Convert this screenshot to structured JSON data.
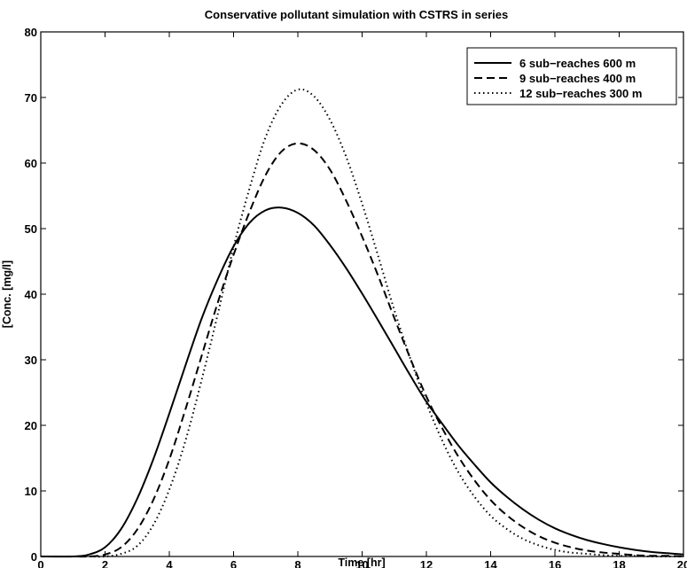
{
  "chart_data": {
    "type": "line",
    "title": "Conservative pollutant simulation with CSTRS in series",
    "xlabel": "Time [hr]",
    "ylabel": "[Conc. [mg/l]",
    "xlim": [
      0,
      20
    ],
    "ylim": [
      0,
      80
    ],
    "x_ticks": [
      "0",
      "2",
      "4",
      "6",
      "8",
      "10",
      "12",
      "14",
      "16",
      "18",
      "20"
    ],
    "y_ticks": [
      "0",
      "10",
      "20",
      "30",
      "40",
      "50",
      "60",
      "70",
      "80"
    ],
    "grid": false,
    "legend_position": "top-right",
    "x": [
      0,
      1,
      1.5,
      2,
      2.5,
      3,
      3.5,
      4,
      4.5,
      5,
      5.5,
      6,
      6.5,
      7,
      7.5,
      8,
      8.5,
      9,
      9.5,
      10,
      10.5,
      11,
      11.5,
      12,
      12.5,
      13,
      13.5,
      14,
      14.5,
      15,
      15.5,
      16,
      16.5,
      17,
      17.5,
      18,
      18.5,
      19,
      19.5,
      20
    ],
    "series": [
      {
        "name": "6 sub−reaches 600 m",
        "style": "solid",
        "values": [
          0,
          0,
          0.3,
          1.4,
          4.2,
          8.8,
          14.8,
          21.8,
          29.1,
          36.2,
          42.2,
          47.3,
          50.9,
          52.8,
          53.2,
          52.4,
          50.5,
          47.5,
          44,
          40.1,
          36,
          31.8,
          27.6,
          23.6,
          20.2,
          16.9,
          14,
          11.3,
          9.1,
          7.2,
          5.6,
          4.3,
          3.3,
          2.5,
          1.9,
          1.4,
          1,
          0.7,
          0.5,
          0.3
        ]
      },
      {
        "name": "9 sub−reaches 400 m",
        "style": "dashed",
        "values": [
          0,
          0,
          0,
          0.3,
          1.4,
          4.1,
          8.6,
          14.8,
          22.4,
          30.5,
          38.6,
          46,
          52.6,
          58.2,
          61.8,
          63,
          62,
          59,
          54.3,
          48.8,
          42.8,
          36.4,
          30.2,
          24.4,
          19.5,
          15.2,
          11.6,
          8.6,
          6.3,
          4.5,
          3.1,
          2.1,
          1.4,
          0.9,
          0.6,
          0.4,
          0.2,
          0.1,
          0.1,
          0
        ]
      },
      {
        "name": "12 sub−reaches 300 m",
        "style": "dotted",
        "values": [
          0,
          0,
          0,
          0,
          0.4,
          1.6,
          4.8,
          10.2,
          17.6,
          26.8,
          36.8,
          47.2,
          56.2,
          64,
          69,
          71.2,
          70.2,
          66.6,
          61,
          53.8,
          45.8,
          37.6,
          30.2,
          23.4,
          17.6,
          12.8,
          9.1,
          6.2,
          4.2,
          2.7,
          1.7,
          1,
          0.6,
          0.4,
          0.2,
          0.1,
          0.1,
          0,
          0,
          0
        ]
      }
    ]
  }
}
